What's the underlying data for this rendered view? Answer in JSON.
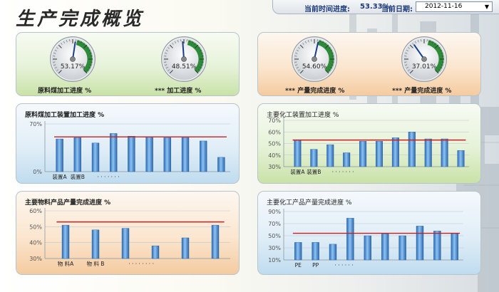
{
  "header": {
    "title": "生产完成概览",
    "time_progress_label": "当前时间进度:",
    "time_progress_value": "53.33%",
    "date_label": "当前日期:",
    "date_value": "2012-11-16"
  },
  "gauges_left": [
    {
      "value": "53.17%",
      "pct": 53.17,
      "label": "原料煤加工进度  %"
    },
    {
      "value": "48.51%",
      "pct": 48.51,
      "label": "***  加工进度  %"
    }
  ],
  "gauges_right": [
    {
      "value": "54.60%",
      "pct": 54.6,
      "label": "***  产量完成进度  %"
    },
    {
      "value": "37.01%",
      "pct": 37.01,
      "label": "***  产量完成进度  %"
    }
  ],
  "colors": {
    "bar": "#4a8fd4",
    "target_line": "#c62020",
    "title": "#222222"
  },
  "chart_data": [
    {
      "type": "bar",
      "title": "原料煤加工装置加工进度  %",
      "ylim": [
        0,
        70
      ],
      "yticks": [
        "70%",
        "0%"
      ],
      "ytick_values": [
        70,
        0
      ],
      "values": [
        48,
        50,
        42,
        56,
        52,
        51,
        50,
        50,
        45,
        21
      ],
      "target": 51,
      "xlabels": [
        "装置A",
        "装置B",
        "· · · · · · ·"
      ]
    },
    {
      "type": "bar",
      "title": "主要化工装置加工进度  %",
      "ylim": [
        30,
        70
      ],
      "yticks": [
        "70%",
        "60%",
        "50%",
        "40%",
        "30%"
      ],
      "ytick_values": [
        70,
        60,
        50,
        40,
        30
      ],
      "values": [
        53,
        45,
        49,
        42,
        52,
        52,
        55,
        60,
        54,
        54,
        44
      ],
      "target": 53,
      "xlabels": [
        "装置A",
        "装置B",
        "· · · · · · ·"
      ]
    },
    {
      "type": "bar",
      "title": "主要物料产品产量完成进度  %",
      "ylim": [
        30,
        60
      ],
      "yticks": [
        "60%",
        "50%",
        "40%",
        "30%"
      ],
      "ytick_values": [
        60,
        50,
        40,
        30
      ],
      "values": [
        51,
        48,
        49,
        38,
        43,
        51
      ],
      "target": 53,
      "xlabels": [
        "物 料A",
        "物 料 B",
        "· · · · · · · ·"
      ]
    },
    {
      "type": "bar",
      "title": "主要化工产品产量完成进度  %",
      "ylim": [
        10,
        90
      ],
      "yticks": [
        "90%",
        "70%",
        "50%",
        "30%",
        "10%"
      ],
      "ytick_values": [
        90,
        70,
        50,
        30,
        10
      ],
      "values": [
        39,
        39,
        36,
        79,
        50,
        53,
        50,
        66,
        58,
        54
      ],
      "target": 54,
      "xlabels": [
        "PE",
        "PP",
        "· · · · · ·"
      ]
    }
  ]
}
